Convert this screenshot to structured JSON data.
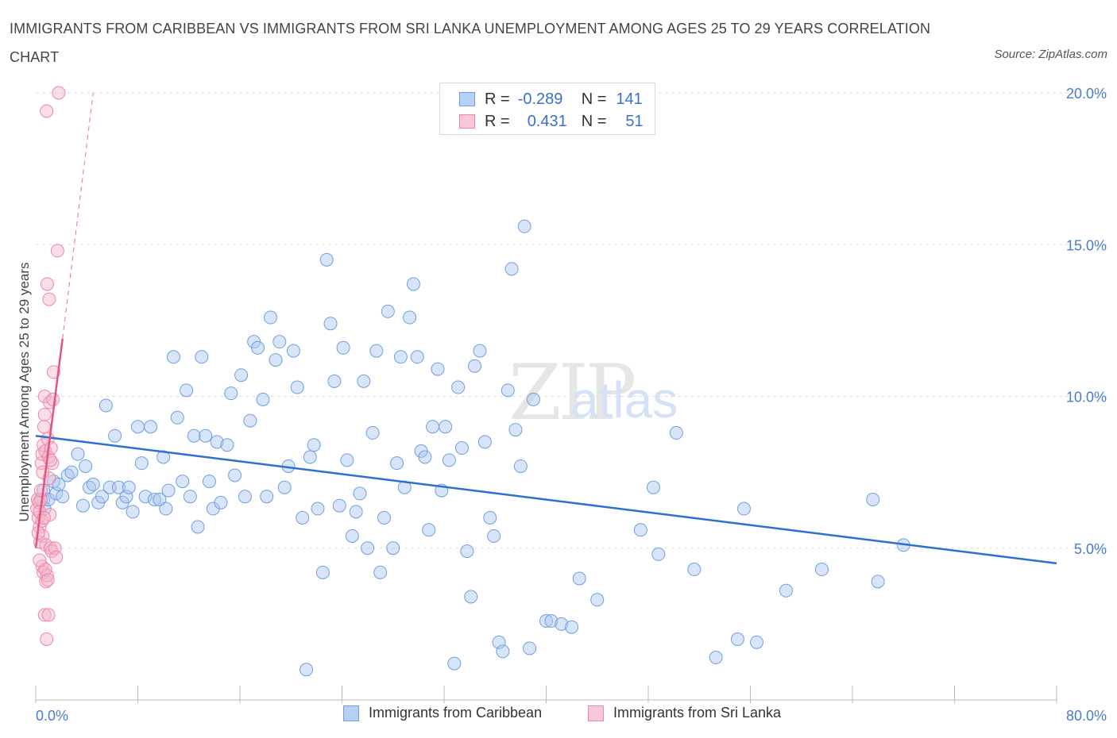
{
  "title": "IMMIGRANTS FROM CARIBBEAN VS IMMIGRANTS FROM SRI LANKA UNEMPLOYMENT AMONG AGES 25 TO 29 YEARS CORRELATION CHART",
  "source": "Source: ZipAtlas.com",
  "watermark": {
    "zip": "ZIP",
    "atlas": "atlas"
  },
  "legend": {
    "r_label": "R =",
    "n_label": "N =",
    "caribbean": {
      "r": "-0.289",
      "n": "141"
    },
    "srilanka": {
      "r": "0.431",
      "n": "51"
    }
  },
  "colors": {
    "blue_fill": "#a9c6ef",
    "blue_stroke": "#6f9fe0",
    "blue_line": "#2f6fcf",
    "pink_fill": "#f4b6c9",
    "pink_stroke": "#ee86a6",
    "pink_line": "#e0567f",
    "grid": "#dddddd",
    "axis_text": "#4a7cc9"
  },
  "chart_data": {
    "type": "scatter",
    "title": "IMMIGRANTS FROM CARIBBEAN VS IMMIGRANTS FROM SRI LANKA UNEMPLOYMENT AMONG AGES 25 TO 29 YEARS CORRELATION CHART",
    "xlabel": "",
    "ylabel": "Unemployment Among Ages 25 to 29 years",
    "xlim": [
      0,
      80
    ],
    "ylim": [
      0,
      20
    ],
    "x_tick_labels": [
      {
        "value": 0,
        "label": "0.0%"
      },
      {
        "value": 80,
        "label": "80.0%"
      }
    ],
    "y_tick_labels": [
      {
        "value": 5,
        "label": "5.0%"
      },
      {
        "value": 10,
        "label": "10.0%"
      },
      {
        "value": 15,
        "label": "15.0%"
      },
      {
        "value": 20,
        "label": "20.0%"
      }
    ],
    "grid": true,
    "legend_position": "bottom",
    "series": [
      {
        "name": "Immigrants from Caribbean",
        "color": "#a9c6ef",
        "trend": {
          "x": [
            0,
            80
          ],
          "y": [
            8.7,
            4.5
          ]
        },
        "points": [
          [
            0.6,
            6.6
          ],
          [
            0.6,
            6.9
          ],
          [
            0.7,
            6.3
          ],
          [
            1.0,
            6.6
          ],
          [
            1.4,
            7.2
          ],
          [
            1.6,
            6.8
          ],
          [
            1.8,
            7.1
          ],
          [
            2.1,
            6.7
          ],
          [
            2.5,
            7.4
          ],
          [
            2.8,
            7.5
          ],
          [
            3.3,
            8.1
          ],
          [
            3.7,
            6.4
          ],
          [
            3.9,
            7.7
          ],
          [
            4.2,
            7.0
          ],
          [
            4.5,
            7.1
          ],
          [
            4.9,
            6.5
          ],
          [
            5.2,
            6.7
          ],
          [
            5.5,
            9.7
          ],
          [
            5.8,
            7.0
          ],
          [
            6.2,
            8.7
          ],
          [
            6.5,
            7.0
          ],
          [
            6.8,
            6.5
          ],
          [
            7.1,
            6.7
          ],
          [
            7.3,
            7.0
          ],
          [
            7.6,
            6.2
          ],
          [
            8.0,
            9.0
          ],
          [
            8.3,
            7.8
          ],
          [
            8.6,
            6.7
          ],
          [
            9.0,
            9.0
          ],
          [
            9.3,
            6.6
          ],
          [
            9.7,
            6.6
          ],
          [
            10.0,
            8.0
          ],
          [
            10.2,
            6.3
          ],
          [
            10.4,
            6.9
          ],
          [
            10.8,
            11.3
          ],
          [
            11.1,
            9.3
          ],
          [
            11.5,
            7.2
          ],
          [
            11.8,
            10.2
          ],
          [
            12.1,
            6.7
          ],
          [
            12.4,
            8.7
          ],
          [
            12.7,
            5.7
          ],
          [
            13.0,
            11.3
          ],
          [
            13.3,
            8.7
          ],
          [
            13.6,
            7.2
          ],
          [
            13.9,
            6.3
          ],
          [
            14.2,
            8.5
          ],
          [
            14.5,
            6.5
          ],
          [
            15.0,
            8.4
          ],
          [
            15.3,
            10.1
          ],
          [
            15.6,
            7.4
          ],
          [
            16.1,
            10.7
          ],
          [
            16.4,
            6.7
          ],
          [
            16.8,
            9.2
          ],
          [
            17.1,
            11.8
          ],
          [
            17.4,
            11.6
          ],
          [
            17.8,
            9.9
          ],
          [
            18.1,
            6.7
          ],
          [
            18.4,
            12.6
          ],
          [
            18.8,
            11.2
          ],
          [
            19.1,
            11.8
          ],
          [
            19.5,
            7.0
          ],
          [
            19.8,
            7.7
          ],
          [
            20.2,
            11.5
          ],
          [
            20.5,
            10.3
          ],
          [
            20.9,
            6.0
          ],
          [
            21.2,
            1.0
          ],
          [
            21.5,
            8.0
          ],
          [
            21.8,
            8.4
          ],
          [
            22.1,
            6.3
          ],
          [
            22.5,
            4.2
          ],
          [
            22.8,
            14.5
          ],
          [
            23.1,
            12.4
          ],
          [
            23.4,
            10.5
          ],
          [
            23.8,
            6.4
          ],
          [
            24.1,
            11.6
          ],
          [
            24.4,
            7.9
          ],
          [
            24.8,
            5.4
          ],
          [
            25.1,
            6.2
          ],
          [
            25.4,
            6.8
          ],
          [
            25.7,
            10.5
          ],
          [
            26.0,
            5.0
          ],
          [
            26.4,
            8.8
          ],
          [
            26.7,
            11.5
          ],
          [
            27.0,
            4.2
          ],
          [
            27.3,
            6.0
          ],
          [
            27.6,
            12.8
          ],
          [
            28.0,
            5.0
          ],
          [
            28.3,
            7.8
          ],
          [
            28.6,
            11.3
          ],
          [
            28.9,
            7.0
          ],
          [
            29.3,
            12.6
          ],
          [
            29.6,
            13.7
          ],
          [
            29.9,
            11.3
          ],
          [
            30.2,
            8.2
          ],
          [
            30.5,
            8.0
          ],
          [
            30.8,
            5.6
          ],
          [
            31.1,
            9.0
          ],
          [
            31.5,
            10.9
          ],
          [
            31.8,
            6.9
          ],
          [
            32.1,
            9.0
          ],
          [
            32.4,
            7.9
          ],
          [
            32.8,
            1.2
          ],
          [
            33.1,
            10.3
          ],
          [
            33.4,
            8.3
          ],
          [
            33.8,
            4.9
          ],
          [
            34.1,
            3.4
          ],
          [
            34.4,
            11.0
          ],
          [
            34.8,
            11.5
          ],
          [
            35.2,
            8.5
          ],
          [
            35.6,
            6.0
          ],
          [
            35.9,
            5.4
          ],
          [
            36.3,
            1.9
          ],
          [
            36.6,
            1.6
          ],
          [
            37.0,
            10.2
          ],
          [
            37.3,
            14.2
          ],
          [
            37.6,
            8.9
          ],
          [
            38.0,
            7.7
          ],
          [
            38.3,
            15.6
          ],
          [
            38.7,
            1.7
          ],
          [
            39.0,
            9.9
          ],
          [
            40.0,
            2.6
          ],
          [
            40.4,
            2.6
          ],
          [
            41.2,
            2.5
          ],
          [
            42.0,
            2.4
          ],
          [
            42.6,
            4.0
          ],
          [
            44.0,
            3.3
          ],
          [
            47.4,
            5.6
          ],
          [
            48.4,
            7.0
          ],
          [
            48.8,
            4.8
          ],
          [
            50.2,
            8.8
          ],
          [
            51.6,
            4.3
          ],
          [
            53.3,
            1.4
          ],
          [
            55.0,
            2.0
          ],
          [
            55.5,
            6.3
          ],
          [
            56.5,
            1.9
          ],
          [
            58.8,
            3.6
          ],
          [
            61.6,
            4.3
          ],
          [
            65.6,
            6.6
          ],
          [
            66.0,
            3.9
          ],
          [
            68.0,
            5.1
          ]
        ]
      },
      {
        "name": "Immigrants from Sri Lanka",
        "color": "#f4b6c9",
        "trend": {
          "x": [
            0,
            2.1
          ],
          "y": [
            5.0,
            11.9
          ]
        },
        "trend_extension": {
          "x": [
            2.1,
            4.5
          ],
          "y": [
            11.9,
            20.0
          ]
        },
        "points": [
          [
            0.1,
            6.3
          ],
          [
            0.15,
            6.6
          ],
          [
            0.2,
            6.0
          ],
          [
            0.25,
            6.5
          ],
          [
            0.3,
            5.7
          ],
          [
            0.3,
            6.2
          ],
          [
            0.35,
            5.2
          ],
          [
            0.4,
            6.6
          ],
          [
            0.45,
            7.8
          ],
          [
            0.5,
            8.1
          ],
          [
            0.5,
            4.4
          ],
          [
            0.55,
            5.4
          ],
          [
            0.6,
            8.4
          ],
          [
            0.6,
            4.2
          ],
          [
            0.65,
            9.0
          ],
          [
            0.7,
            2.8
          ],
          [
            0.7,
            10.0
          ],
          [
            0.75,
            8.2
          ],
          [
            0.8,
            3.9
          ],
          [
            0.8,
            5.1
          ],
          [
            0.85,
            19.4
          ],
          [
            0.9,
            4.1
          ],
          [
            0.9,
            13.7
          ],
          [
            0.95,
            8.6
          ],
          [
            1.0,
            8.0
          ],
          [
            1.0,
            2.8
          ],
          [
            1.05,
            13.2
          ],
          [
            1.1,
            6.1
          ],
          [
            1.1,
            9.8
          ],
          [
            1.15,
            5.0
          ],
          [
            1.2,
            8.3
          ],
          [
            1.25,
            4.9
          ],
          [
            1.3,
            7.8
          ],
          [
            1.35,
            9.9
          ],
          [
            1.4,
            10.8
          ],
          [
            1.5,
            5.0
          ],
          [
            1.6,
            4.7
          ],
          [
            1.7,
            14.8
          ],
          [
            1.8,
            20.0
          ],
          [
            0.5,
            5.9
          ],
          [
            0.65,
            6.0
          ],
          [
            0.75,
            4.3
          ],
          [
            0.85,
            2.0
          ],
          [
            0.95,
            3.95
          ],
          [
            1.05,
            7.3
          ],
          [
            0.4,
            6.9
          ],
          [
            0.55,
            7.5
          ],
          [
            0.2,
            5.5
          ],
          [
            0.3,
            4.6
          ],
          [
            1.15,
            7.9
          ],
          [
            0.7,
            9.4
          ]
        ]
      }
    ]
  }
}
